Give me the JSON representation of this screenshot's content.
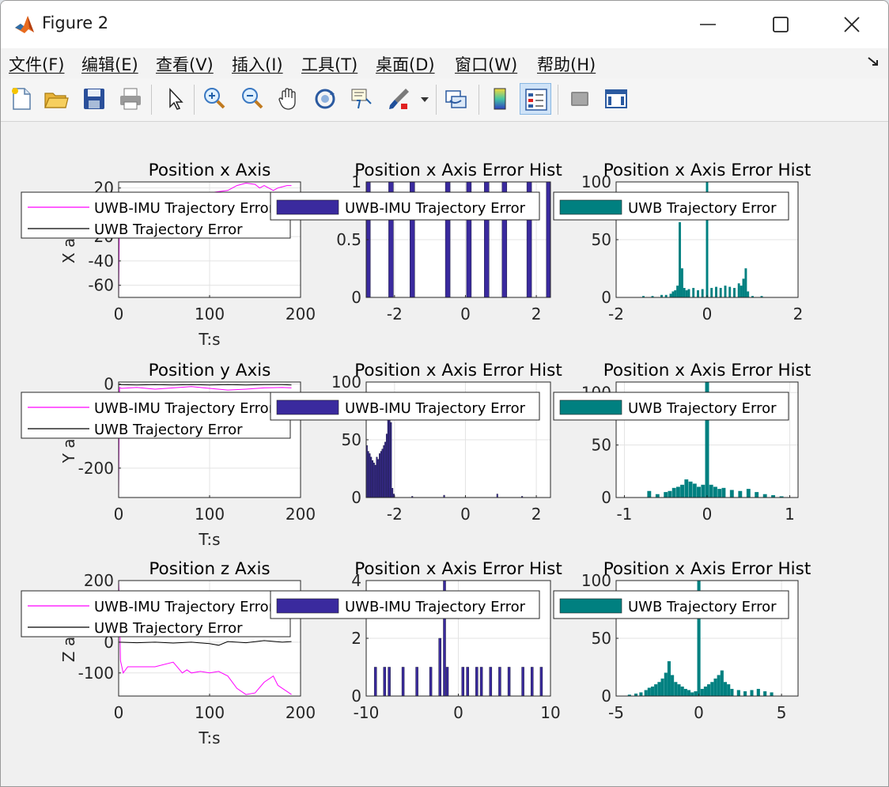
{
  "window": {
    "title": "Figure 2",
    "menu": [
      "文件(F)",
      "编辑(E)",
      "查看(V)",
      "插入(I)",
      "工具(T)",
      "桌面(D)",
      "窗口(W)",
      "帮助(H)"
    ]
  },
  "toolbar": {
    "buttons": [
      {
        "icon": "new-figure-icon"
      },
      {
        "icon": "open-folder-icon"
      },
      {
        "icon": "save-icon"
      },
      {
        "icon": "print-icon"
      },
      {
        "icon": "pointer-arrow-icon"
      },
      {
        "icon": "zoom-in-icon"
      },
      {
        "icon": "zoom-out-icon"
      },
      {
        "icon": "pan-hand-icon"
      },
      {
        "icon": "rotate-3d-icon"
      },
      {
        "icon": "data-cursor-icon"
      },
      {
        "icon": "brush-icon"
      },
      {
        "icon": "link-plot-icon"
      },
      {
        "icon": "colorbar-icon"
      },
      {
        "icon": "legend-icon"
      },
      {
        "icon": "hide-tools-icon"
      },
      {
        "icon": "show-tools-icon"
      }
    ]
  },
  "colors": {
    "magenta": "#ff00ff",
    "black": "#000000",
    "bar_blue": "#3a2a9e",
    "teal": "#008080"
  },
  "legend": {
    "uwb_imu": "UWB-IMU Trajectory Error",
    "uwb": "UWB Trajectory Error"
  },
  "chart_data": [
    {
      "type": "line",
      "title": "Position x Axis",
      "xlabel": "T:s",
      "ylabel": "X axis",
      "xlim": [
        0,
        200
      ],
      "ylim": [
        -70,
        25
      ],
      "xticks": [
        0,
        100,
        200
      ],
      "yticks": [
        20,
        -20,
        -40,
        -60
      ],
      "grid": true,
      "legend": "top-left",
      "series": [
        {
          "name": "UWB-IMU Trajectory Error",
          "color": "#ff00ff",
          "x": [
            0,
            0.5,
            1,
            2,
            60,
            80,
            100,
            120,
            130,
            140,
            150,
            155,
            160,
            170,
            175,
            180,
            185,
            190
          ],
          "y": [
            -70,
            -30,
            10,
            12,
            13,
            14,
            16,
            18,
            22,
            24,
            23,
            20,
            22,
            18,
            20,
            21,
            22,
            22
          ]
        },
        {
          "name": "UWB Trajectory Error",
          "color": "#000000",
          "x": [
            0,
            190
          ],
          "y": [
            10,
            10
          ]
        }
      ]
    },
    {
      "type": "bar",
      "title": "Position x Axis Error Hist",
      "xlim": [
        -2.8,
        2.4
      ],
      "ylim": [
        0,
        1
      ],
      "xticks": [
        -2,
        0,
        2
      ],
      "yticks": [
        0,
        0.5,
        1
      ],
      "grid": true,
      "legend": "top",
      "series": [
        {
          "name": "UWB-IMU Trajectory Error",
          "color": "#3a2a9e",
          "x": [
            -2.75,
            -2.1,
            -1.5,
            -0.5,
            0.1,
            0.6,
            1.1,
            1.8,
            2.35
          ],
          "y": [
            1,
            1,
            1,
            1,
            1,
            1,
            1,
            1,
            1
          ]
        }
      ]
    },
    {
      "type": "bar",
      "title": "Position x Axis Error Hist",
      "xlim": [
        -2,
        2
      ],
      "ylim": [
        0,
        100
      ],
      "xticks": [
        -2,
        0,
        2
      ],
      "yticks": [
        0,
        50,
        100
      ],
      "grid": true,
      "legend": "top",
      "series": [
        {
          "name": "UWB Trajectory Error",
          "color": "#008080",
          "x": [
            -1.4,
            -1.2,
            -1.0,
            -0.9,
            -0.8,
            -0.75,
            -0.7,
            -0.65,
            -0.6,
            -0.55,
            -0.5,
            -0.45,
            -0.4,
            -0.3,
            -0.2,
            -0.1,
            0,
            0.1,
            0.2,
            0.3,
            0.4,
            0.5,
            0.6,
            0.7,
            0.75,
            0.8,
            0.85,
            0.9,
            1.0,
            1.2
          ],
          "y": [
            1,
            1,
            2,
            2,
            3,
            5,
            6,
            10,
            65,
            25,
            8,
            6,
            7,
            8,
            6,
            7,
            100,
            8,
            9,
            8,
            10,
            9,
            8,
            12,
            10,
            16,
            25,
            5,
            1,
            1
          ]
        }
      ]
    },
    {
      "type": "line",
      "title": "Position y Axis",
      "xlabel": "T:s",
      "ylabel": "Y axis",
      "xlim": [
        0,
        200
      ],
      "ylim": [
        -270,
        5
      ],
      "xticks": [
        0,
        100,
        200
      ],
      "yticks": [
        0,
        -200
      ],
      "grid": true,
      "legend": "top-left",
      "series": [
        {
          "name": "UWB-IMU Trajectory Error",
          "color": "#ff00ff",
          "x": [
            0,
            0.5,
            1,
            3,
            20,
            40,
            60,
            80,
            100,
            120,
            140,
            160,
            180,
            190
          ],
          "y": [
            -270,
            -100,
            -8,
            -10,
            -8,
            -12,
            -9,
            -6,
            -10,
            -14,
            -12,
            -9,
            -8,
            -9
          ]
        },
        {
          "name": "UWB Trajectory Error",
          "color": "#000000",
          "x": [
            0,
            20,
            40,
            60,
            80,
            100,
            120,
            140,
            160,
            180,
            190
          ],
          "y": [
            -1,
            -2,
            -1,
            -2,
            -1,
            -2,
            -1,
            -2,
            -1,
            -1,
            -2
          ]
        }
      ]
    },
    {
      "type": "bar",
      "title": "Position x Axis Error Hist",
      "xlim": [
        -2.8,
        2.4
      ],
      "ylim": [
        0,
        100
      ],
      "xticks": [
        -2,
        0,
        2
      ],
      "yticks": [
        0,
        50,
        100
      ],
      "grid": true,
      "legend": "top",
      "series": [
        {
          "name": "UWB-IMU Trajectory Error",
          "color": "#3a2a9e",
          "x": [
            -2.78,
            -2.74,
            -2.7,
            -2.66,
            -2.62,
            -2.58,
            -2.54,
            -2.5,
            -2.46,
            -2.42,
            -2.38,
            -2.34,
            -2.3,
            -2.26,
            -2.22,
            -2.18,
            -2.14,
            -2.1,
            -2.06,
            -2.02,
            -1.5,
            -0.6,
            0.9,
            1.6
          ],
          "y": [
            45,
            40,
            38,
            35,
            32,
            30,
            28,
            35,
            33,
            38,
            40,
            42,
            45,
            48,
            55,
            68,
            70,
            65,
            8,
            3,
            1,
            2,
            3,
            1
          ]
        }
      ]
    },
    {
      "type": "bar",
      "title": "Position x Axis Error Hist",
      "xlim": [
        -1.1,
        1.1
      ],
      "ylim": [
        0,
        110
      ],
      "xticks": [
        -1,
        0,
        1
      ],
      "yticks": [
        0,
        50,
        100
      ],
      "grid": true,
      "legend": "top",
      "series": [
        {
          "name": "UWB Trajectory Error",
          "color": "#008080",
          "x": [
            -0.7,
            -0.6,
            -0.5,
            -0.45,
            -0.4,
            -0.35,
            -0.3,
            -0.25,
            -0.2,
            -0.15,
            -0.1,
            -0.05,
            0,
            0.05,
            0.1,
            0.15,
            0.2,
            0.3,
            0.4,
            0.5,
            0.6,
            0.7,
            0.8,
            0.9
          ],
          "y": [
            6,
            3,
            5,
            6,
            9,
            10,
            12,
            17,
            15,
            13,
            10,
            12,
            110,
            12,
            10,
            8,
            9,
            7,
            6,
            8,
            5,
            3,
            2,
            1
          ]
        }
      ]
    },
    {
      "type": "line",
      "title": "Position z Axis",
      "xlabel": "T:s",
      "ylabel": "Z axis",
      "xlim": [
        0,
        200
      ],
      "ylim": [
        -175,
        200
      ],
      "xticks": [
        0,
        100,
        200
      ],
      "yticks": [
        200,
        0,
        -100
      ],
      "grid": true,
      "legend": "top-left",
      "series": [
        {
          "name": "UWB-IMU Trajectory Error",
          "color": "#ff00ff",
          "x": [
            0,
            1,
            2,
            5,
            10,
            20,
            40,
            60,
            70,
            75,
            80,
            90,
            100,
            110,
            120,
            130,
            140,
            150,
            160,
            170,
            175,
            180,
            185,
            190
          ],
          "y": [
            200,
            100,
            -60,
            -100,
            -80,
            -80,
            -80,
            -65,
            -100,
            -90,
            -100,
            -95,
            -100,
            -95,
            -110,
            -150,
            -170,
            -165,
            -130,
            -110,
            -140,
            -150,
            -160,
            -170
          ]
        },
        {
          "name": "UWB Trajectory Error",
          "color": "#000000",
          "x": [
            0,
            20,
            40,
            60,
            80,
            100,
            110,
            120,
            140,
            160,
            180,
            190
          ],
          "y": [
            0,
            -2,
            0,
            -3,
            0,
            -5,
            -10,
            2,
            -2,
            5,
            0,
            2
          ]
        }
      ]
    },
    {
      "type": "bar",
      "title": "Position x Axis Error Hist",
      "xlim": [
        -10,
        10
      ],
      "ylim": [
        0,
        4
      ],
      "xticks": [
        -10,
        0,
        10
      ],
      "yticks": [
        0,
        2,
        4
      ],
      "grid": true,
      "legend": "top",
      "series": [
        {
          "name": "UWB-IMU Trajectory Error",
          "color": "#3a2a9e",
          "x": [
            -9,
            -8,
            -7.5,
            -6,
            -4.5,
            -3,
            -2,
            -1.5,
            -1.2,
            0.5,
            1,
            2,
            2.5,
            3.5,
            4.5,
            5.5,
            7,
            8,
            9
          ],
          "y": [
            1,
            1,
            1,
            1,
            1,
            1,
            2,
            4,
            1,
            1,
            1,
            1,
            1,
            1,
            1,
            1,
            1,
            1,
            1
          ]
        }
      ]
    },
    {
      "type": "bar",
      "title": "Position x Axis Error Hist",
      "xlim": [
        -5,
        6
      ],
      "ylim": [
        0,
        100
      ],
      "xticks": [
        -5,
        0,
        5
      ],
      "yticks": [
        0,
        50,
        100
      ],
      "grid": true,
      "legend": "top",
      "series": [
        {
          "name": "UWB Trajectory Error",
          "color": "#008080",
          "x": [
            -4.2,
            -3.8,
            -3.5,
            -3.2,
            -3.0,
            -2.8,
            -2.6,
            -2.4,
            -2.2,
            -2.0,
            -1.8,
            -1.6,
            -1.4,
            -1.2,
            -1.0,
            -0.8,
            -0.6,
            -0.4,
            -0.2,
            0,
            0.2,
            0.4,
            0.6,
            0.8,
            1.0,
            1.2,
            1.4,
            1.6,
            1.8,
            2.0,
            2.4,
            2.8,
            3.2,
            3.6,
            4.0,
            4.4
          ],
          "y": [
            1,
            2,
            3,
            5,
            7,
            8,
            10,
            12,
            15,
            20,
            30,
            18,
            12,
            10,
            8,
            6,
            5,
            3,
            4,
            100,
            6,
            8,
            10,
            12,
            15,
            18,
            22,
            12,
            10,
            6,
            5,
            4,
            5,
            6,
            4,
            3
          ]
        }
      ]
    }
  ]
}
